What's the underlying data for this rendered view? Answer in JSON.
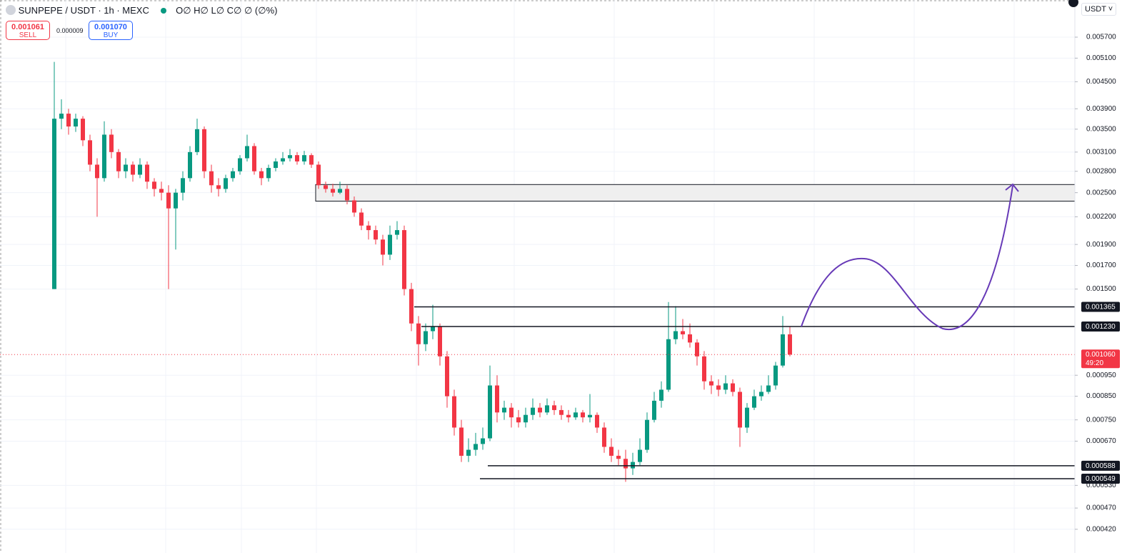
{
  "header": {
    "symbol": "SUNPEPE / USDT · 1h · MEXC",
    "ohlc": "O∅ H∅ L∅ C∅ ∅ (∅%)",
    "sell_price": "0.001061",
    "sell_label": "SELL",
    "spread": "0.000009",
    "buy_price": "0.001070",
    "buy_label": "BUY",
    "currency": "USDT"
  },
  "chart_data": {
    "type": "candlestick",
    "log_scale": true,
    "grid": true,
    "up_color": "#089981",
    "down_color": "#f23645",
    "ylim": [
      0.000395,
      0.00694
    ],
    "yticks": [
      {
        "value": 0.0057,
        "label": "0.005700"
      },
      {
        "value": 0.0051,
        "label": "0.005100"
      },
      {
        "value": 0.0045,
        "label": "0.004500"
      },
      {
        "value": 0.0039,
        "label": "0.003900"
      },
      {
        "value": 0.0035,
        "label": "0.003500"
      },
      {
        "value": 0.0031,
        "label": "0.003100"
      },
      {
        "value": 0.0028,
        "label": "0.002800"
      },
      {
        "value": 0.0025,
        "label": "0.002500"
      },
      {
        "value": 0.0022,
        "label": "0.002200"
      },
      {
        "value": 0.0019,
        "label": "0.001900"
      },
      {
        "value": 0.0017,
        "label": "0.001700"
      },
      {
        "value": 0.0015,
        "label": "0.001500"
      },
      {
        "value": 0.00095,
        "label": "0.000950"
      },
      {
        "value": 0.00085,
        "label": "0.000850"
      },
      {
        "value": 0.00075,
        "label": "0.000750"
      },
      {
        "value": 0.00067,
        "label": "0.000670"
      },
      {
        "value": 0.00053,
        "label": "0.000530"
      },
      {
        "value": 0.00047,
        "label": "0.000470"
      },
      {
        "value": 0.00042,
        "label": "0.000420"
      }
    ],
    "levels": [
      0.001365,
      {
        "value": 0.00123,
        "label": "0.001230"
      },
      0.000588,
      0.000549
    ],
    "zone": [
      0.00239,
      0.00261
    ],
    "current_price": {
      "value": 0.00106,
      "label": "0.001060",
      "countdown": "49:20"
    },
    "open": [
      0.0015,
      0.0037,
      0.0038,
      0.00355,
      0.0037,
      0.0033,
      0.0029,
      0.0027,
      0.0034,
      0.0031,
      0.0028,
      0.0029,
      0.00275,
      0.0029,
      0.00265,
      0.00255,
      0.0025,
      0.0023,
      0.0025,
      0.0027,
      0.0031,
      0.0035,
      0.0028,
      0.0026,
      0.00255,
      0.0027,
      0.0028,
      0.003,
      0.0032,
      0.0028,
      0.0027,
      0.00285,
      0.00295,
      0.003,
      0.00305,
      0.00295,
      0.00305,
      0.0029,
      0.0026,
      0.00255,
      0.0025,
      0.00255,
      0.0024,
      0.00225,
      0.0021,
      0.00205,
      0.00195,
      0.0018,
      0.002,
      0.00205,
      0.0015,
      0.00125,
      0.00112,
      0.0012,
      0.00123,
      0.00105,
      0.00085,
      0.00072,
      0.00062,
      0.00064,
      0.00066,
      0.00068,
      0.0009,
      0.00078,
      0.0008,
      0.00076,
      0.00074,
      0.00077,
      0.0008,
      0.00078,
      0.00081,
      0.00079,
      0.00077,
      0.00076,
      0.00078,
      0.00076,
      0.00077,
      0.00072,
      0.00065,
      0.00062,
      0.00061,
      0.00058,
      0.0006,
      0.00064,
      0.00075,
      0.00083,
      0.00088,
      0.00115,
      0.0012,
      0.00118,
      0.00113,
      0.00105,
      0.00092,
      0.0009,
      0.00088,
      0.00091,
      0.00087,
      0.00072,
      0.0008,
      0.00085,
      0.00087,
      0.0009,
      0.001,
      0.00118
    ],
    "high": [
      0.005,
      0.0041,
      0.0039,
      0.0038,
      0.00375,
      0.0034,
      0.003,
      0.00365,
      0.0035,
      0.00315,
      0.003,
      0.00295,
      0.003,
      0.00295,
      0.0027,
      0.00265,
      0.0026,
      0.00255,
      0.0028,
      0.0032,
      0.0037,
      0.00355,
      0.0029,
      0.0027,
      0.00275,
      0.00285,
      0.00305,
      0.0034,
      0.00325,
      0.00285,
      0.0029,
      0.003,
      0.0031,
      0.00315,
      0.0031,
      0.00312,
      0.00308,
      0.00295,
      0.00265,
      0.00262,
      0.00265,
      0.0026,
      0.00245,
      0.0023,
      0.00215,
      0.0021,
      0.002,
      0.0021,
      0.00215,
      0.0021,
      0.00155,
      0.0013,
      0.00125,
      0.00138,
      0.00125,
      0.00108,
      0.00088,
      0.00075,
      0.00068,
      0.0007,
      0.00072,
      0.001,
      0.00095,
      0.00083,
      0.00082,
      0.00079,
      0.0008,
      0.00084,
      0.00082,
      0.00084,
      0.00083,
      0.00081,
      0.00079,
      0.0008,
      0.00079,
      0.00086,
      0.00078,
      0.00074,
      0.00068,
      0.00064,
      0.00064,
      0.00063,
      0.00068,
      0.00078,
      0.00087,
      0.00092,
      0.0014,
      0.00137,
      0.00128,
      0.00125,
      0.00115,
      0.00108,
      0.00095,
      0.00093,
      0.00095,
      0.00093,
      0.00089,
      0.00082,
      0.00088,
      0.0009,
      0.00095,
      0.00102,
      0.0013,
      0.00123
    ],
    "low": [
      0.0015,
      0.0035,
      0.0034,
      0.00345,
      0.0032,
      0.0028,
      0.0022,
      0.00265,
      0.003,
      0.0027,
      0.0027,
      0.00265,
      0.0027,
      0.00255,
      0.00245,
      0.0024,
      0.0015,
      0.00185,
      0.0024,
      0.00265,
      0.00305,
      0.0027,
      0.0025,
      0.00245,
      0.0025,
      0.00265,
      0.00275,
      0.00295,
      0.00275,
      0.0026,
      0.00265,
      0.0028,
      0.0029,
      0.00295,
      0.0029,
      0.0029,
      0.00285,
      0.00255,
      0.0025,
      0.00245,
      0.00248,
      0.00235,
      0.0022,
      0.00205,
      0.00195,
      0.0019,
      0.0017,
      0.00175,
      0.00195,
      0.00145,
      0.0012,
      0.001,
      0.00108,
      0.00115,
      0.001,
      0.0008,
      0.00069,
      0.0006,
      0.0006,
      0.00062,
      0.00064,
      0.00067,
      0.00074,
      0.00075,
      0.00072,
      0.00072,
      0.00072,
      0.00075,
      0.00076,
      0.00077,
      0.00077,
      0.00075,
      0.00074,
      0.00075,
      0.00074,
      0.00074,
      0.0007,
      0.00063,
      0.0006,
      0.00059,
      0.00054,
      0.00056,
      0.00059,
      0.00063,
      0.00074,
      0.0008,
      0.00087,
      0.00112,
      0.00115,
      0.0011,
      0.001,
      0.00088,
      0.00086,
      0.00085,
      0.00086,
      0.00085,
      0.00065,
      0.0007,
      0.00079,
      0.00083,
      0.00086,
      0.00088,
      0.00099,
      0.00105
    ],
    "close": [
      0.0037,
      0.0038,
      0.00355,
      0.0037,
      0.0033,
      0.0029,
      0.0027,
      0.0034,
      0.0031,
      0.0028,
      0.0029,
      0.00275,
      0.0029,
      0.00265,
      0.00255,
      0.0025,
      0.0023,
      0.0025,
      0.0027,
      0.0031,
      0.0035,
      0.0028,
      0.0026,
      0.00255,
      0.0027,
      0.0028,
      0.003,
      0.0032,
      0.0028,
      0.0027,
      0.00285,
      0.00295,
      0.003,
      0.00305,
      0.00295,
      0.00305,
      0.0029,
      0.0026,
      0.00255,
      0.0025,
      0.00255,
      0.0024,
      0.00225,
      0.0021,
      0.00205,
      0.00195,
      0.0018,
      0.002,
      0.00205,
      0.0015,
      0.00125,
      0.00112,
      0.0012,
      0.00123,
      0.00105,
      0.00085,
      0.00072,
      0.00062,
      0.00064,
      0.00066,
      0.00068,
      0.0009,
      0.00078,
      0.0008,
      0.00076,
      0.00074,
      0.00077,
      0.0008,
      0.00078,
      0.00081,
      0.00079,
      0.00077,
      0.00076,
      0.00078,
      0.00076,
      0.00077,
      0.00072,
      0.00065,
      0.00062,
      0.00061,
      0.00058,
      0.0006,
      0.00064,
      0.00075,
      0.00083,
      0.00088,
      0.00115,
      0.0012,
      0.00118,
      0.00113,
      0.00105,
      0.00092,
      0.0009,
      0.00088,
      0.00091,
      0.00087,
      0.00072,
      0.0008,
      0.00085,
      0.00087,
      0.0009,
      0.001,
      0.00118,
      0.00106
    ]
  }
}
